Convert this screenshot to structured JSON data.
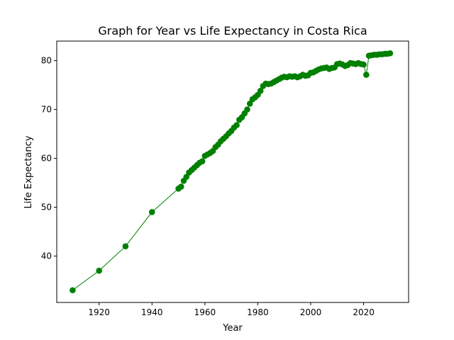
{
  "chart_data": {
    "type": "line",
    "title": "Graph for Year vs Life Expectancy in Costa Rica",
    "xlabel": "Year",
    "ylabel": "Life Expectancy",
    "xlim": [
      1904,
      2037
    ],
    "ylim": [
      30.5,
      84
    ],
    "xticks": [
      1920,
      1940,
      1960,
      1980,
      2000,
      2020
    ],
    "yticks": [
      40,
      50,
      60,
      70,
      80
    ],
    "grid": false,
    "color": "#008000",
    "marker": "circle",
    "series": [
      {
        "x": [
          1910,
          1920,
          1930,
          1940,
          1950,
          1951,
          1952,
          1953,
          1954,
          1955,
          1956,
          1957,
          1958,
          1959,
          1960,
          1961,
          1962,
          1963,
          1964,
          1965,
          1966,
          1967,
          1968,
          1969,
          1970,
          1971,
          1972,
          1973,
          1974,
          1975,
          1976,
          1977,
          1978,
          1979,
          1980,
          1981,
          1982,
          1983,
          1984,
          1985,
          1986,
          1987,
          1988,
          1989,
          1990,
          1991,
          1992,
          1993,
          1994,
          1995,
          1996,
          1997,
          1998,
          1999,
          2000,
          2001,
          2002,
          2003,
          2004,
          2005,
          2006,
          2007,
          2008,
          2009,
          2010,
          2011,
          2012,
          2013,
          2014,
          2015,
          2016,
          2017,
          2018,
          2019,
          2020,
          2021,
          2022,
          2023,
          2024,
          2025,
          2026,
          2027,
          2028,
          2029,
          2030
        ],
        "y": [
          33.0,
          37.0,
          42.0,
          49.0,
          53.8,
          54.2,
          55.4,
          56.2,
          57.1,
          57.6,
          58.1,
          58.6,
          59.1,
          59.4,
          60.5,
          60.8,
          61.1,
          61.5,
          62.3,
          62.8,
          63.5,
          64.0,
          64.5,
          65.1,
          65.6,
          66.3,
          66.8,
          67.9,
          68.4,
          69.2,
          70.0,
          71.2,
          72.1,
          72.5,
          73.0,
          73.8,
          74.8,
          75.3,
          75.2,
          75.3,
          75.6,
          75.9,
          76.2,
          76.5,
          76.7,
          76.6,
          76.8,
          76.7,
          76.8,
          76.6,
          76.8,
          77.1,
          76.9,
          77.0,
          77.5,
          77.6,
          77.9,
          78.2,
          78.4,
          78.5,
          78.6,
          78.3,
          78.5,
          78.6,
          79.3,
          79.4,
          79.2,
          78.9,
          79.1,
          79.5,
          79.4,
          79.3,
          79.5,
          79.3,
          79.2,
          77.1,
          81.0,
          81.1,
          81.2,
          81.2,
          81.3,
          81.3,
          81.4,
          81.4,
          81.5
        ]
      }
    ]
  }
}
